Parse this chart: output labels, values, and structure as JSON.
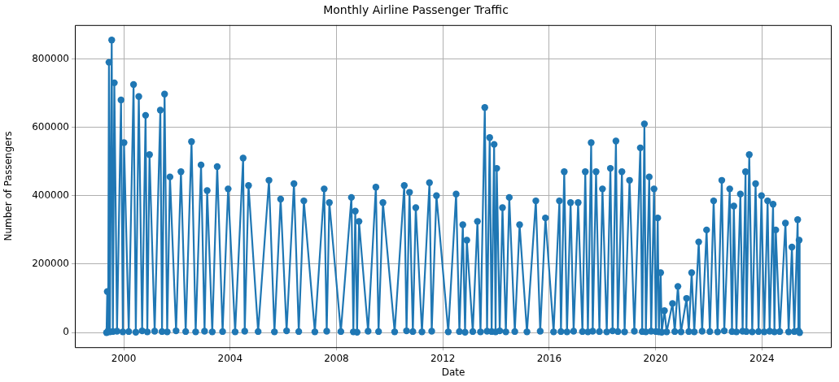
{
  "chart_data": {
    "type": "line",
    "title": "Monthly Airline Passenger Traffic",
    "xlabel": "Date",
    "ylabel": "Number of Passengers",
    "xlim": [
      "1998-03-01",
      "2026-08-15"
    ],
    "xticks": [
      "2000",
      "2004",
      "2008",
      "2012",
      "2016",
      "2020",
      "2024"
    ],
    "ylim": [
      -42800,
      898800
    ],
    "yticks": [
      0,
      200000,
      400000,
      600000,
      800000
    ],
    "grid": true,
    "legend": false,
    "marker": "circle",
    "line_style": "solid",
    "series": [
      {
        "color": "#1f77b4",
        "x": [
          "1999-05-10",
          "1999-05-20",
          "1999-06-01",
          "1999-06-12",
          "1999-06-25",
          "1999-07-20",
          "1999-08-05",
          "1999-08-25",
          "1999-10-01",
          "1999-11-25",
          "1999-12-20",
          "2000-01-05",
          "2000-03-10",
          "2000-05-15",
          "2000-06-15",
          "2000-07-26",
          "2000-09-10",
          "2000-10-27",
          "2000-11-20",
          "2000-12-20",
          "2001-03-01",
          "2001-05-18",
          "2001-06-10",
          "2001-07-15",
          "2001-08-20",
          "2001-09-27",
          "2001-12-20",
          "2002-02-25",
          "2002-05-01",
          "2002-07-20",
          "2002-09-15",
          "2002-11-28",
          "2003-01-15",
          "2003-02-20",
          "2003-05-01",
          "2003-07-08",
          "2003-09-20",
          "2003-12-05",
          "2004-03-10",
          "2004-06-28",
          "2004-07-20",
          "2004-09-10",
          "2005-01-20",
          "2005-06-18",
          "2005-09-01",
          "2005-11-25",
          "2006-02-15",
          "2006-05-27",
          "2006-08-01",
          "2006-10-10",
          "2007-03-10",
          "2007-07-16",
          "2007-08-20",
          "2007-09-25",
          "2008-03-01",
          "2008-07-24",
          "2008-08-20",
          "2008-09-15",
          "2008-10-10",
          "2008-11-05",
          "2009-03-10",
          "2009-06-25",
          "2009-08-01",
          "2009-09-30",
          "2010-03-10",
          "2010-07-20",
          "2010-08-20",
          "2010-09-30",
          "2010-11-15",
          "2010-12-25",
          "2011-03-20",
          "2011-07-01",
          "2011-08-01",
          "2011-10-05",
          "2012-03-15",
          "2012-07-01",
          "2012-08-15",
          "2012-10-01",
          "2012-11-01",
          "2012-11-25",
          "2013-02-15",
          "2013-04-20",
          "2013-06-01",
          "2013-07-30",
          "2013-08-30",
          "2013-10-05",
          "2013-11-01",
          "2013-12-05",
          "2013-12-25",
          "2014-01-10",
          "2014-02-20",
          "2014-03-30",
          "2014-05-15",
          "2014-07-01",
          "2014-09-15",
          "2014-11-20",
          "2015-03-01",
          "2015-07-01",
          "2015-08-30",
          "2015-11-10",
          "2016-03-01",
          "2016-05-20",
          "2016-06-10",
          "2016-07-25",
          "2016-09-01",
          "2016-10-20",
          "2016-12-01",
          "2017-02-01",
          "2017-04-01",
          "2017-05-10",
          "2017-06-15",
          "2017-07-30",
          "2017-08-20",
          "2017-10-05",
          "2017-11-20",
          "2018-01-01",
          "2018-03-01",
          "2018-04-20",
          "2018-05-20",
          "2018-07-05",
          "2018-08-01",
          "2018-09-25",
          "2018-11-01",
          "2019-01-08",
          "2019-03-15",
          "2019-06-05",
          "2019-07-01",
          "2019-07-31",
          "2019-08-20",
          "2019-10-05",
          "2019-11-01",
          "2019-12-10",
          "2020-01-05",
          "2020-01-30",
          "2020-02-15",
          "2020-03-10",
          "2020-03-25",
          "2020-05-01",
          "2020-06-01",
          "2020-08-20",
          "2020-09-20",
          "2020-11-02",
          "2020-12-15",
          "2021-03-01",
          "2021-04-01",
          "2021-05-10",
          "2021-06-15",
          "2021-08-15",
          "2021-10-01",
          "2021-12-01",
          "2022-01-15",
          "2022-03-08",
          "2022-05-01",
          "2022-06-28",
          "2022-08-01",
          "2022-10-15",
          "2022-11-15",
          "2022-12-10",
          "2023-01-15",
          "2023-03-10",
          "2023-04-10",
          "2023-05-20",
          "2023-06-01",
          "2023-07-10",
          "2023-08-20",
          "2023-10-05",
          "2023-11-15",
          "2023-12-25",
          "2024-02-01",
          "2024-03-18",
          "2024-04-15",
          "2024-06-01",
          "2024-06-20",
          "2024-07-08",
          "2024-09-01",
          "2024-11-18",
          "2025-01-01",
          "2025-02-15",
          "2025-03-20",
          "2025-05-05",
          "2025-05-15",
          "2025-05-25",
          "2025-06-01"
        ],
        "values": [
          0,
          120000,
          5000,
          790000,
          2000,
          855000,
          3000,
          730000,
          4000,
          680000,
          2000,
          555000,
          3000,
          725000,
          1000,
          690000,
          5000,
          635000,
          2000,
          520000,
          4000,
          650000,
          3000,
          697000,
          2000,
          455000,
          5000,
          470000,
          3000,
          558000,
          2000,
          490000,
          4000,
          415000,
          2000,
          485000,
          3000,
          420000,
          2000,
          510000,
          4000,
          430000,
          3000,
          445000,
          2000,
          390000,
          5000,
          435000,
          3000,
          385000,
          2000,
          420000,
          4000,
          380000,
          3000,
          395000,
          2000,
          355000,
          1000,
          325000,
          4000,
          425000,
          3000,
          380000,
          2000,
          430000,
          5000,
          410000,
          3000,
          365000,
          2000,
          438000,
          4000,
          400000,
          2000,
          405000,
          3000,
          315000,
          1000,
          270000,
          3000,
          325000,
          2000,
          658000,
          4000,
          570000,
          3000,
          550000,
          2000,
          480000,
          5000,
          365000,
          2000,
          395000,
          3000,
          315000,
          2000,
          385000,
          4000,
          335000,
          2000,
          385000,
          3000,
          470000,
          2000,
          380000,
          4000,
          380000,
          3000,
          470000,
          2000,
          555000,
          4000,
          470000,
          3000,
          420000,
          2000,
          480000,
          5000,
          560000,
          3000,
          470000,
          2000,
          445000,
          4000,
          540000,
          3000,
          610000,
          2000,
          455000,
          4000,
          420000,
          3000,
          335000,
          2000,
          175000,
          1000,
          64000,
          2000,
          85000,
          3000,
          135000,
          2000,
          100000,
          3000,
          175000,
          2000,
          265000,
          4000,
          300000,
          3000,
          385000,
          2000,
          445000,
          5000,
          420000,
          3000,
          370000,
          2000,
          405000,
          4000,
          470000,
          3000,
          520000,
          2000,
          435000,
          3000,
          400000,
          2000,
          385000,
          4000,
          375000,
          2000,
          300000,
          3000,
          320000,
          2000,
          250000,
          3000,
          330000,
          5000,
          270000,
          0
        ]
      }
    ]
  }
}
